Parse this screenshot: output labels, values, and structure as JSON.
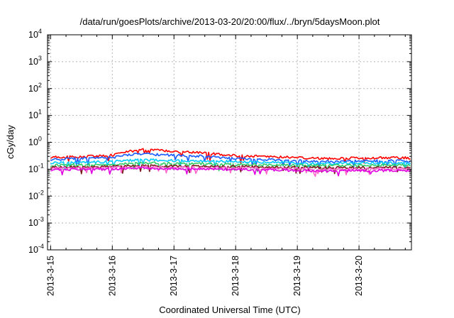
{
  "chart_data": {
    "type": "line",
    "title": "/data/run/goesPlots/archive/2013-03-20/20:00/flux/../bryn/5daysMoon.plot",
    "xlabel": "Coordinated Universal Time (UTC)",
    "ylabel": "cGy/day",
    "yscale": "log",
    "ylim": [
      0.0001,
      10000
    ],
    "xlim": [
      -0.05,
      5.85
    ],
    "xlim_note": "days since 2013-3-15",
    "x_tick_labels": [
      "2013-3-15",
      "2013-3-16",
      "2013-3-17",
      "2013-3-18",
      "2013-3-19",
      "2013-3-20"
    ],
    "y_tick_labels": [
      {
        "base": "10",
        "exp": "-4"
      },
      {
        "base": "10",
        "exp": "-3"
      },
      {
        "base": "10",
        "exp": "-2"
      },
      {
        "base": "10",
        "exp": "-1"
      },
      {
        "base": "10",
        "exp": "0"
      },
      {
        "base": "10",
        "exp": "1"
      },
      {
        "base": "10",
        "exp": "2"
      },
      {
        "base": "10",
        "exp": "3"
      },
      {
        "base": "10",
        "exp": "4"
      }
    ],
    "grid": true,
    "x": [
      "2013-3-15 00:00",
      "2013-3-15 12:00",
      "2013-3-16 00:00",
      "2013-3-16 06:00",
      "2013-3-16 12:00",
      "2013-3-17 00:00",
      "2013-3-17 12:00",
      "2013-3-18 00:00",
      "2013-3-18 12:00",
      "2013-3-19 00:00",
      "2013-3-19 12:00",
      "2013-3-20 00:00",
      "2013-3-20 12:00",
      "2013-3-20 20:00"
    ],
    "series": [
      {
        "color": "#ff0000",
        "values": [
          0.28,
          0.29,
          0.33,
          0.45,
          0.55,
          0.45,
          0.4,
          0.32,
          0.3,
          0.27,
          0.25,
          0.26,
          0.27,
          0.26
        ]
      },
      {
        "color": "#1a5cff",
        "values": [
          0.23,
          0.25,
          0.27,
          0.34,
          0.37,
          0.33,
          0.3,
          0.25,
          0.23,
          0.21,
          0.19,
          0.2,
          0.21,
          0.2
        ]
      },
      {
        "color": "#00ccff",
        "values": [
          0.17,
          0.18,
          0.19,
          0.21,
          0.22,
          0.21,
          0.2,
          0.19,
          0.18,
          0.17,
          0.16,
          0.17,
          0.17,
          0.17
        ]
      },
      {
        "color": "#33cc66",
        "values": [
          0.14,
          0.145,
          0.15,
          0.16,
          0.17,
          0.165,
          0.16,
          0.15,
          0.145,
          0.14,
          0.135,
          0.14,
          0.14,
          0.14
        ]
      },
      {
        "color": "#7a1a1a",
        "values": [
          0.12,
          0.12,
          0.125,
          0.13,
          0.135,
          0.13,
          0.128,
          0.125,
          0.12,
          0.118,
          0.115,
          0.115,
          0.118,
          0.115
        ]
      },
      {
        "color": "#ff66cc",
        "values": [
          0.11,
          0.11,
          0.115,
          0.12,
          0.12,
          0.118,
          0.115,
          0.112,
          0.11,
          0.105,
          0.1,
          0.1,
          0.105,
          0.1
        ]
      },
      {
        "color": "#e000e0",
        "values": [
          0.095,
          0.1,
          0.1,
          0.105,
          0.11,
          0.105,
          0.1,
          0.098,
          0.095,
          0.09,
          0.085,
          0.088,
          0.09,
          0.088
        ]
      }
    ]
  }
}
